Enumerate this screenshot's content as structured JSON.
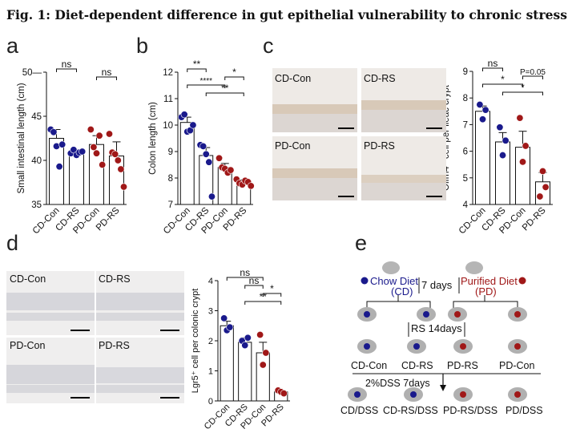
{
  "figure": {
    "title": "Fig. 1: Diet-dependent difference in gut epithelial vulnerability to chronic stress.",
    "panel_letters": {
      "a": "a",
      "b": "b",
      "c": "c",
      "d": "d",
      "e": "e"
    }
  },
  "chart_data": [
    {
      "panel": "a",
      "type": "bar",
      "categories": [
        "CD-Con",
        "CD-RS",
        "PD-Con",
        "PD-RS"
      ],
      "values": [
        42.5,
        40.8,
        41.8,
        40.5
      ],
      "errors": [
        1.0,
        0.4,
        1.0,
        1.6
      ],
      "points": [
        [
          43.5,
          43.2,
          41.6,
          39.3,
          41.8
        ],
        [
          40.8,
          41.2,
          40.6,
          40.9,
          41.0
        ],
        [
          43.5,
          41.5,
          40.8,
          42.8,
          39.5
        ],
        [
          43.0,
          40.9,
          40.7,
          40.0,
          39.0,
          37.0
        ]
      ],
      "point_colors": [
        "#1a1a8c",
        "#1a1a8c",
        "#a01818",
        "#a01818"
      ],
      "ylabel": "Small intestinal length (cm)",
      "ylim": [
        35,
        50
      ],
      "yticks": [
        35,
        40,
        45,
        50
      ],
      "yticklabels": [
        "35",
        "40",
        "45",
        "50—"
      ],
      "significance": [
        {
          "from": 0,
          "to": 1,
          "label": "ns"
        },
        {
          "from": 2,
          "to": 3,
          "label": "ns"
        }
      ]
    },
    {
      "panel": "b",
      "type": "bar",
      "categories": [
        "CD-Con",
        "CD-RS",
        "PD-Con",
        "PD-RS"
      ],
      "values": [
        10.1,
        8.85,
        8.4,
        7.85
      ],
      "errors": [
        0.2,
        0.3,
        0.15,
        0.08
      ],
      "points": [
        [
          10.3,
          10.4,
          9.75,
          9.8,
          10.0
        ],
        [
          9.25,
          9.2,
          8.9,
          8.6,
          7.3
        ],
        [
          8.75,
          8.4,
          8.35,
          8.2,
          8.3
        ],
        [
          7.95,
          7.8,
          7.75,
          7.9,
          7.85,
          7.7
        ]
      ],
      "point_colors": [
        "#1a1a8c",
        "#1a1a8c",
        "#a01818",
        "#a01818"
      ],
      "ylabel": "Colon length (cm)",
      "ylim": [
        7,
        12
      ],
      "yticks": [
        7,
        8,
        9,
        10,
        11,
        12
      ],
      "yticklabels": [
        "7",
        "8",
        "9",
        "10",
        "11",
        "12"
      ],
      "significance": [
        {
          "from": 0,
          "to": 1,
          "label": "**"
        },
        {
          "from": 2,
          "to": 3,
          "label": "*"
        },
        {
          "from": 0,
          "to": 2,
          "label": "****"
        },
        {
          "from": 1,
          "to": 3,
          "label": "**"
        }
      ]
    },
    {
      "panel": "c",
      "type": "bar",
      "categories": [
        "CD-Con",
        "CD-RS",
        "PD-Con",
        "PD-RS"
      ],
      "values": [
        7.5,
        6.35,
        6.15,
        4.85
      ],
      "errors": [
        0.2,
        0.35,
        0.6,
        0.35
      ],
      "points": [
        [
          7.75,
          7.2,
          7.55
        ],
        [
          6.9,
          5.85,
          6.4
        ],
        [
          7.25,
          5.6,
          6.2
        ],
        [
          4.3,
          5.25,
          4.65
        ]
      ],
      "point_colors": [
        "#1a1a8c",
        "#1a1a8c",
        "#a01818",
        "#a01818"
      ],
      "ylabel": "Olfm4⁺ cell per ileac crypt",
      "ylim": [
        4,
        9
      ],
      "yticks": [
        4,
        5,
        6,
        7,
        8,
        9
      ],
      "yticklabels": [
        "4",
        "5",
        "6",
        "7",
        "8",
        "9"
      ],
      "significance": [
        {
          "from": 0,
          "to": 1,
          "label": "ns"
        },
        {
          "from": 2,
          "to": 3,
          "label": "P=0.05"
        },
        {
          "from": 0,
          "to": 2,
          "label": "*"
        },
        {
          "from": 1,
          "to": 3,
          "label": "*"
        }
      ]
    },
    {
      "panel": "d",
      "type": "bar",
      "categories": [
        "CD-Con",
        "CD-RS",
        "PD-Con",
        "PD-RS"
      ],
      "values": [
        2.5,
        1.95,
        1.6,
        0.3
      ],
      "errors": [
        0.15,
        0.15,
        0.35,
        0.05
      ],
      "points": [
        [
          2.75,
          2.35,
          2.45
        ],
        [
          2.0,
          1.85,
          2.1
        ],
        [
          2.2,
          1.2,
          1.6
        ],
        [
          0.35,
          0.3,
          0.25
        ]
      ],
      "point_colors": [
        "#1a1a8c",
        "#1a1a8c",
        "#a01818",
        "#a01818"
      ],
      "ylabel": "Lgr5⁺ cell per colonic crypt",
      "ylim": [
        0,
        4
      ],
      "yticks": [
        0,
        1,
        2,
        3,
        4
      ],
      "yticklabels": [
        "0",
        "1",
        "2",
        "3",
        "4"
      ],
      "significance": [
        {
          "from": 0,
          "to": 2,
          "label": "ns"
        },
        {
          "from": 1,
          "to": 2,
          "label": "ns"
        },
        {
          "from": 2,
          "to": 3,
          "label": "*"
        },
        {
          "from": 1,
          "to": 3,
          "label": "**"
        }
      ]
    }
  ],
  "micrographs": {
    "c": [
      "CD-Con",
      "CD-RS",
      "PD-Con",
      "PD-RS"
    ],
    "d": [
      "CD-Con",
      "CD-RS",
      "PD-Con",
      "PD-RS"
    ]
  },
  "schematic": {
    "chow_label": "Chow Diet",
    "chow_abbr": "(CD)",
    "purified_label": "Purified Diet",
    "purified_abbr": "(PD)",
    "acclimation": "7 days",
    "stress": "RS 14days",
    "dss": "2%DSS 7days",
    "group_labels": [
      "CD-Con",
      "CD-RS",
      "PD-RS",
      "PD-Con"
    ],
    "dss_labels": [
      "CD/DSS",
      "CD-RS/DSS",
      "PD-RS/DSS",
      "PD/DSS"
    ],
    "colors": {
      "chow": "#1a1a8c",
      "purified": "#a01818"
    }
  }
}
